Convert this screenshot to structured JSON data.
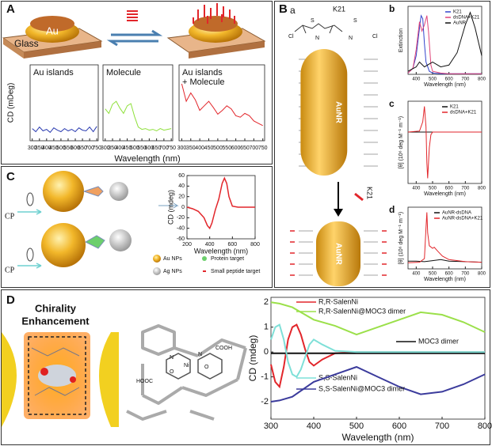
{
  "panel_a": {
    "label": "A",
    "glass": "Glass",
    "au": "Au",
    "ylabel": "CD (mDeg)",
    "xlabel": "Wavelength (nm)",
    "plots": [
      {
        "title": [
          "Au islands"
        ],
        "xlim": [
          285,
          760
        ],
        "ylim": [
          0,
          10
        ],
        "xticks": [
          300,
          350,
          400,
          450,
          500,
          550,
          600,
          650,
          700,
          750
        ],
        "series": [
          {
            "color": "#2a3bb0",
            "x": [
              300,
              325,
              350,
              375,
              400,
              425,
              450,
              475,
              500,
              525,
              550,
              575,
              600,
              625,
              650,
              675,
              700,
              725,
              750
            ],
            "values": [
              1.6,
              1.2,
              1.8,
              1.3,
              1.5,
              1.1,
              1.7,
              1.4,
              1.2,
              1.6,
              1.3,
              1.5,
              1.2,
              1.7,
              1.4,
              1.3,
              1.8,
              1.2,
              1.9
            ]
          }
        ]
      },
      {
        "title": [
          "Molecule"
        ],
        "xlim": [
          285,
          760
        ],
        "ylim": [
          0,
          10
        ],
        "xticks": [
          300,
          350,
          400,
          450,
          500,
          550,
          600,
          650,
          700,
          750
        ],
        "series": [
          {
            "color": "#8ee03a",
            "x": [
              300,
              325,
              350,
              375,
              400,
              425,
              450,
              475,
              500,
              525,
              550,
              575,
              600,
              625,
              650,
              675,
              700,
              725,
              750
            ],
            "values": [
              4.2,
              3.6,
              4.8,
              5.2,
              4.3,
              3.6,
              4.6,
              4.9,
              3.2,
              1.8,
              1.5,
              1.6,
              1.4,
              1.5,
              1.3,
              1.6,
              1.4,
              1.5,
              1.6
            ]
          }
        ]
      },
      {
        "title": [
          "Au islands",
          "+ Molecule"
        ],
        "xlim": [
          285,
          760
        ],
        "ylim": [
          0,
          10
        ],
        "xticks": [
          300,
          350,
          400,
          450,
          500,
          550,
          600,
          650,
          700,
          750
        ],
        "series": [
          {
            "color": "#e2262b",
            "x": [
              300,
              325,
              350,
              375,
              400,
              425,
              450,
              475,
              500,
              525,
              550,
              575,
              600,
              625,
              650,
              675,
              700,
              725,
              750
            ],
            "values": [
              7.5,
              5.2,
              6.3,
              5.4,
              4.0,
              4.6,
              5.2,
              4.4,
              3.5,
              4.0,
              4.6,
              4.2,
              3.3,
              3.1,
              3.6,
              3.3,
              2.6,
              2.3,
              2.0
            ]
          }
        ]
      }
    ]
  },
  "panel_b": {
    "label": "B",
    "sublabel": "a",
    "molecule": "K21",
    "atoms": [
      "Cl",
      "S",
      "N",
      "S",
      "N",
      "Cl"
    ],
    "rod_top": "AuNR",
    "arrow_label": "K21",
    "rod_bottom": "AuNR",
    "plots": [
      {
        "letter": "b",
        "ylabel": "Extinction",
        "xlabel": "Wavelength (nm)",
        "xlim": [
          350,
          800
        ],
        "ylim": [
          0,
          1.1
        ],
        "xticks": [
          400,
          500,
          600,
          700,
          800
        ],
        "series": [
          {
            "name": "K21",
            "color": "#3344cc",
            "x": [
              350,
              380,
              400,
              420,
              430,
              440,
              450,
              460,
              480,
              500,
              550,
              600,
              700,
              800
            ],
            "values": [
              0.02,
              0.1,
              0.3,
              0.75,
              0.95,
              0.9,
              0.5,
              0.2,
              0.05,
              0.02,
              0.01,
              0.01,
              0.01,
              0.01
            ]
          },
          {
            "name": "dsDNA+K21",
            "color": "#e0457a",
            "x": [
              350,
              380,
              400,
              420,
              435,
              450,
              465,
              475,
              490,
              500,
              550,
              600,
              700,
              800
            ],
            "values": [
              0.02,
              0.1,
              0.4,
              0.85,
              0.7,
              0.8,
              0.95,
              0.7,
              0.15,
              0.05,
              0.02,
              0.01,
              0.01,
              0.01
            ]
          },
          {
            "name": "AuNR",
            "color": "#111111",
            "x": [
              350,
              400,
              420,
              450,
              500,
              550,
              600,
              650,
              700,
              730,
              760,
              800
            ],
            "values": [
              0.05,
              0.12,
              0.2,
              0.12,
              0.2,
              0.12,
              0.15,
              0.35,
              0.8,
              1.0,
              0.75,
              0.3
            ]
          }
        ]
      },
      {
        "letter": "c",
        "ylabel": "[θ] (10⁶ deg M⁻¹ m⁻¹)",
        "xlabel": "Wavelength (nm)",
        "xlim": [
          350,
          800
        ],
        "ylim": [
          -1,
          0.6
        ],
        "xticks": [
          400,
          500,
          600,
          700,
          800
        ],
        "series": [
          {
            "name": "K21",
            "color": "#111111",
            "x": [
              350,
              450,
              500,
              600,
              800
            ],
            "values": [
              0,
              0,
              0,
              0,
              0
            ]
          },
          {
            "name": "dsDNA+K21",
            "color": "#e2262b",
            "x": [
              350,
              420,
              440,
              450,
              460,
              465,
              470,
              480,
              490,
              500,
              550,
              800
            ],
            "values": [
              0,
              0.02,
              0.2,
              0.5,
              0.1,
              -0.6,
              -0.9,
              -0.3,
              -0.05,
              0,
              0,
              0
            ]
          }
        ]
      },
      {
        "letter": "d",
        "ylabel": "[θ] (10⁶ deg M⁻¹ m⁻¹)",
        "xlabel": "Wavelength (nm)",
        "xlim": [
          350,
          800
        ],
        "ylim": [
          -0.1,
          1.1
        ],
        "xticks": [
          400,
          500,
          600,
          700,
          800
        ],
        "series": [
          {
            "name": "AuNR-dsDNA",
            "color": "#111111",
            "x": [
              350,
              400,
              450,
              500,
              550,
              600,
              700,
              800
            ],
            "values": [
              0.05,
              0.05,
              0.04,
              0.06,
              0.08,
              0.05,
              0.04,
              0.03
            ]
          },
          {
            "name": "AuNR-dsDNA+K21",
            "color": "#e2262b",
            "x": [
              350,
              420,
              450,
              460,
              465,
              470,
              480,
              500,
              510,
              530,
              560,
              600,
              700,
              800
            ],
            "values": [
              0.02,
              0.03,
              0.1,
              0.7,
              1.0,
              0.6,
              0.35,
              0.3,
              0.32,
              0.25,
              0.15,
              0.08,
              0.04,
              0.03
            ]
          }
        ]
      }
    ]
  },
  "panel_c": {
    "label": "C",
    "cp": [
      "CP",
      "CP"
    ],
    "legend": [
      "Au NPs",
      "Protein target",
      "Ag NPs",
      "Small peptide target"
    ],
    "plots": [
      {
        "ylabel": "CD (mdeg)",
        "xlabel": "Wavelength (nm)",
        "xlim": [
          200,
          800
        ],
        "ylim": [
          -60,
          60
        ],
        "xticks": [
          200,
          400,
          600,
          800
        ],
        "yticks": [
          -60,
          -40,
          -20,
          0,
          20,
          40,
          60
        ],
        "series": [
          {
            "color": "#e2262b",
            "x": [
              200,
              250,
              300,
              350,
              380,
              400,
              420,
              450,
              480,
              510,
              530,
              550,
              570,
              600,
              650,
              700,
              800
            ],
            "values": [
              0,
              -3,
              -8,
              -20,
              -35,
              -40,
              -30,
              -5,
              15,
              45,
              55,
              45,
              20,
              2,
              0,
              0,
              0
            ]
          }
        ]
      }
    ]
  },
  "panel_d": {
    "label": "D",
    "heading": [
      "Chirality",
      "Enhancement"
    ],
    "atoms": [
      "N",
      "Ni",
      "O",
      "COOH",
      "HOOC",
      "N",
      "O"
    ],
    "plots": [
      {
        "ylabel": "CD (mdeg)",
        "xlabel": "Wavelength (nm)",
        "xlim": [
          300,
          800
        ],
        "ylim": [
          -2.7,
          2.2
        ],
        "xticks": [
          300,
          400,
          500,
          600,
          700,
          800
        ],
        "yticks": [
          -2,
          -1,
          0,
          1,
          2
        ],
        "series": [
          {
            "name": "R,R-SalenNi",
            "color": "#e2262b",
            "x": [
              300,
              310,
              320,
              330,
              340,
              350,
              360,
              370,
              380,
              390,
              400,
              420,
              450,
              500,
              600,
              800
            ],
            "values": [
              -0.5,
              -1.2,
              -1.4,
              -0.6,
              0.5,
              1.0,
              1.1,
              0.7,
              0.1,
              -0.4,
              -0.55,
              -0.3,
              -0.05,
              0,
              0,
              0
            ]
          },
          {
            "name": "R,R-SalenNi@MOC3 dimer",
            "color": "#9be04a",
            "x": [
              300,
              320,
              350,
              400,
              450,
              500,
              550,
              600,
              650,
              700,
              750,
              800
            ],
            "values": [
              2.0,
              1.95,
              1.8,
              1.3,
              1.05,
              0.7,
              1.0,
              1.3,
              1.6,
              1.5,
              1.2,
              0.8
            ]
          },
          {
            "name": "MOC3 dimer",
            "color": "#111111",
            "x": [
              300,
              400,
              500,
              600,
              700,
              800
            ],
            "values": [
              -0.05,
              -0.05,
              -0.05,
              -0.05,
              -0.05,
              -0.05
            ]
          },
          {
            "name": "S,S-SalenNi",
            "color": "#7fe0d8",
            "x": [
              300,
              310,
              320,
              330,
              340,
              350,
              360,
              370,
              380,
              390,
              400,
              420,
              450,
              500,
              600,
              800
            ],
            "values": [
              0.5,
              1.0,
              1.1,
              0.5,
              -0.4,
              -0.9,
              -1.0,
              -0.7,
              -0.2,
              0.3,
              0.5,
              0.3,
              0.05,
              0,
              0,
              0
            ]
          },
          {
            "name": "S,S-SalenNi@MOC3 dimer",
            "color": "#3b3b9c",
            "x": [
              300,
              320,
              350,
              400,
              450,
              500,
              550,
              600,
              650,
              700,
              750,
              800
            ],
            "values": [
              -2.0,
              -1.95,
              -1.8,
              -1.2,
              -0.9,
              -0.6,
              -1.0,
              -1.4,
              -1.7,
              -1.6,
              -1.3,
              -0.9
            ]
          }
        ]
      }
    ]
  }
}
